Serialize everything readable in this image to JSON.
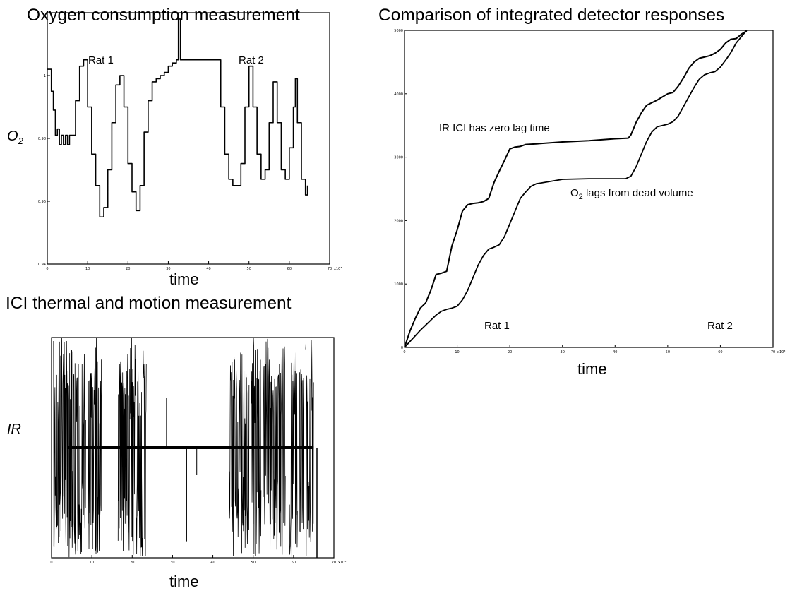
{
  "figure": {
    "panels": [
      {
        "title": "Oxygen consumption measurement",
        "xlabel": "time",
        "ylabel_main": "O",
        "ylabel_sub": "2"
      },
      {
        "title": "ICI thermal and motion measurement",
        "xlabel": "time",
        "ylabel_main": "IR",
        "ylabel_sub": ""
      },
      {
        "title": "Comparison of integrated detector responses",
        "xlabel": "time"
      }
    ]
  },
  "chart_data": [
    {
      "type": "line",
      "title": "Oxygen consumption measurement",
      "xlabel": "time",
      "ylabel": "O2",
      "xlim": [
        0,
        70
      ],
      "ylim": [
        0.94,
        1.02
      ],
      "x_ticks": [
        0,
        10,
        20,
        30,
        40,
        50,
        60,
        70
      ],
      "y_ticks": [
        0.94,
        0.96,
        0.98,
        1.0
      ],
      "x_scale_note": "x10³",
      "grid": false,
      "annotations": [
        "Rat 1",
        "Rat 2"
      ],
      "series": [
        {
          "x": [
            0,
            0.3,
            1,
            1.5,
            2,
            2.5,
            3,
            3.5,
            4,
            4.5,
            5,
            5.5,
            6,
            7,
            8,
            9,
            10,
            11,
            12,
            13,
            14,
            15,
            16,
            17,
            18,
            19,
            20,
            21,
            22,
            23,
            24,
            25,
            26,
            27,
            28,
            29,
            30,
            31,
            32,
            32.5,
            33,
            34,
            36,
            38,
            40,
            42,
            43,
            44,
            45,
            46,
            47,
            48,
            49,
            50,
            51,
            52,
            53,
            54,
            55,
            56,
            57,
            58,
            59,
            60,
            61,
            61.5,
            62,
            63,
            64,
            64.5
          ],
          "y": [
            1.002,
            1.002,
            0.995,
            0.989,
            0.981,
            0.983,
            0.978,
            0.981,
            0.978,
            0.981,
            0.978,
            0.981,
            0.981,
            0.992,
            1.003,
            1.005,
            0.99,
            0.975,
            0.965,
            0.955,
            0.958,
            0.97,
            0.985,
            0.997,
            1.0,
            0.99,
            0.972,
            0.963,
            0.957,
            0.965,
            0.982,
            0.992,
            0.998,
            0.999,
            1.0,
            1.001,
            1.003,
            1.004,
            1.005,
            1.018,
            1.005,
            1.005,
            1.005,
            1.005,
            1.005,
            1.005,
            0.99,
            0.975,
            0.967,
            0.965,
            0.965,
            0.972,
            0.99,
            1.003,
            0.99,
            0.975,
            0.967,
            0.97,
            0.985,
            0.998,
            0.985,
            0.97,
            0.967,
            0.977,
            0.99,
            0.999,
            0.985,
            0.967,
            0.962,
            0.965
          ]
        }
      ]
    },
    {
      "type": "line",
      "title": "ICI thermal and motion measurement",
      "xlabel": "time",
      "ylabel": "IR",
      "xlim": [
        0,
        70
      ],
      "ylim": [
        -1,
        1
      ],
      "x_ticks": [
        0,
        10,
        20,
        30,
        40,
        50,
        60,
        70
      ],
      "x_scale_note": "x10³",
      "grid": false,
      "baseline": 0,
      "active_windows": [
        [
          0.5,
          8.5
        ],
        [
          9,
          12.5
        ],
        [
          16.5,
          19.5
        ],
        [
          19.5,
          23.5
        ],
        [
          44,
          49
        ],
        [
          49.5,
          52
        ],
        [
          52.5,
          58
        ],
        [
          59,
          61
        ],
        [
          61.5,
          62.5
        ],
        [
          63,
          65
        ]
      ],
      "isolated_spikes": [
        {
          "x": 28.5,
          "y": 0.45
        },
        {
          "x": 33.5,
          "y": -0.85
        },
        {
          "x": 36,
          "y": -0.25
        }
      ],
      "end_drop": {
        "x": 65.8,
        "y": -1
      }
    },
    {
      "type": "line",
      "title": "Comparison of integrated detector responses",
      "xlabel": "time",
      "xlim": [
        0,
        70
      ],
      "ylim": [
        0,
        5000
      ],
      "x_ticks": [
        0,
        10,
        20,
        30,
        40,
        50,
        60,
        70
      ],
      "y_ticks": [
        0,
        1000,
        2000,
        3000,
        4000,
        5000
      ],
      "x_scale_note": "x10³",
      "grid": false,
      "annotations": [
        {
          "text": "IR ICI has zero lag time"
        },
        {
          "text": "O",
          "sub": "2",
          "rest": " lags from dead volume"
        },
        {
          "text": "Rat 1"
        },
        {
          "text": "Rat 2"
        }
      ],
      "series": [
        {
          "x": [
            0,
            1,
            2,
            3,
            4,
            5,
            6,
            7,
            8,
            9,
            10,
            11,
            12,
            13,
            14,
            15,
            16,
            17,
            18,
            19,
            20,
            21,
            22,
            23,
            25,
            30,
            35,
            40,
            42.5,
            43,
            44,
            45,
            46,
            47,
            48,
            49,
            50,
            51,
            52,
            53,
            54,
            55,
            56,
            57,
            58,
            59,
            60,
            61,
            62,
            63,
            64,
            65
          ],
          "y": [
            0,
            250,
            450,
            620,
            700,
            900,
            1150,
            1170,
            1200,
            1600,
            1850,
            2150,
            2250,
            2270,
            2280,
            2300,
            2350,
            2600,
            2780,
            2950,
            3130,
            3160,
            3170,
            3200,
            3210,
            3240,
            3260,
            3290,
            3300,
            3350,
            3550,
            3700,
            3820,
            3860,
            3900,
            3950,
            4000,
            4020,
            4120,
            4250,
            4400,
            4500,
            4560,
            4580,
            4600,
            4640,
            4700,
            4800,
            4860,
            4870,
            4940,
            4990
          ]
        },
        {
          "x": [
            0,
            1,
            2,
            3,
            4,
            5,
            6,
            7,
            8,
            9,
            10,
            11,
            12,
            13,
            14,
            15,
            16,
            17,
            18,
            19,
            20,
            21,
            22,
            23,
            24,
            25,
            30,
            35,
            40,
            42,
            43,
            44,
            45,
            46,
            47,
            48,
            49,
            50,
            51,
            52,
            53,
            54,
            55,
            56,
            57,
            58,
            59,
            60,
            61,
            62,
            63,
            64,
            65
          ],
          "y": [
            0,
            90,
            180,
            270,
            350,
            430,
            510,
            570,
            600,
            620,
            650,
            750,
            900,
            1100,
            1300,
            1450,
            1550,
            1580,
            1620,
            1750,
            1950,
            2150,
            2350,
            2450,
            2540,
            2580,
            2650,
            2660,
            2660,
            2660,
            2700,
            2850,
            3050,
            3250,
            3400,
            3480,
            3500,
            3520,
            3560,
            3650,
            3800,
            3950,
            4100,
            4230,
            4300,
            4330,
            4350,
            4420,
            4530,
            4650,
            4800,
            4900,
            5000
          ]
        }
      ]
    }
  ]
}
